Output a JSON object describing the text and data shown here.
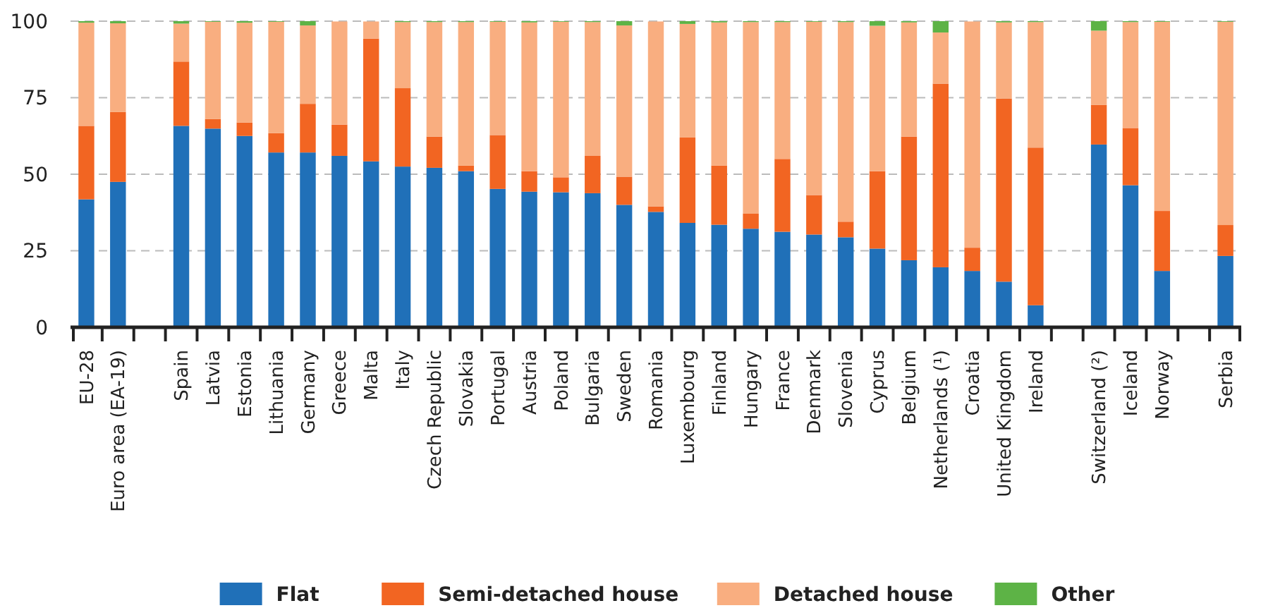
{
  "chart_data": {
    "type": "bar",
    "stacked": true,
    "categories": [
      "EU-28",
      "Euro area (EA-19)",
      null,
      "Spain",
      "Latvia",
      "Estonia",
      "Lithuania",
      "Germany",
      "Greece",
      "Malta",
      "Italy",
      "Czech Republic",
      "Slovakia",
      "Portugal",
      "Austria",
      "Poland",
      "Bulgaria",
      "Sweden",
      "Romania",
      "Luxembourg",
      "Finland",
      "Hungary",
      "France",
      "Denmark",
      "Slovenia",
      "Cyprus",
      "Belgium",
      "Netherlands (¹)",
      "Croatia",
      "United Kingdom",
      "Ireland",
      null,
      "Switzerland (²)",
      "Iceland",
      "Norway",
      null,
      "Serbia"
    ],
    "series": [
      {
        "name": "Flat",
        "color": "#2070b8",
        "values": [
          41.8,
          47.5,
          null,
          65.8,
          64.9,
          62.5,
          57.1,
          57.1,
          56.0,
          54.2,
          52.5,
          52.1,
          51.0,
          45.2,
          44.3,
          44.1,
          43.8,
          40.0,
          37.7,
          34.1,
          33.5,
          32.2,
          31.2,
          30.3,
          29.4,
          25.7,
          21.9,
          19.6,
          18.4,
          14.9,
          7.2,
          null,
          59.7,
          46.4,
          18.4,
          null,
          23.3
        ]
      },
      {
        "name": "Semi-detached house",
        "color": "#f26522",
        "values": [
          24.0,
          22.8,
          null,
          21.0,
          3.1,
          4.4,
          6.3,
          15.9,
          10.2,
          40.1,
          25.6,
          10.2,
          1.8,
          17.6,
          6.7,
          4.9,
          12.2,
          9.2,
          1.8,
          27.9,
          19.3,
          4.9,
          23.8,
          12.9,
          5.1,
          25.3,
          40.4,
          60.0,
          7.6,
          59.8,
          51.5,
          null,
          12.9,
          18.7,
          19.6,
          null,
          10.1
        ]
      },
      {
        "name": "Detached house",
        "color": "#f9ae80",
        "values": [
          33.7,
          29.0,
          null,
          12.4,
          31.8,
          32.6,
          36.4,
          25.6,
          33.7,
          5.6,
          21.6,
          37.4,
          46.9,
          37.0,
          48.6,
          50.8,
          43.7,
          49.4,
          60.4,
          37.1,
          46.8,
          62.6,
          44.7,
          56.6,
          65.2,
          47.5,
          37.3,
          16.7,
          73.9,
          24.9,
          41.0,
          null,
          24.3,
          34.6,
          61.8,
          null,
          66.4
        ]
      },
      {
        "name": "Other",
        "color": "#5db346",
        "values": [
          0.5,
          0.7,
          null,
          0.8,
          0.2,
          0.5,
          0.2,
          1.4,
          null,
          null,
          0.3,
          0.3,
          0.3,
          0.2,
          0.4,
          0.2,
          0.3,
          1.4,
          null,
          0.9,
          0.4,
          0.3,
          0.3,
          0.2,
          0.3,
          1.5,
          0.4,
          3.7,
          null,
          0.4,
          0.3,
          null,
          3.1,
          0.3,
          0.2,
          null,
          0.2
        ]
      }
    ],
    "ylim": [
      0,
      100
    ],
    "yticks": [
      0,
      25,
      50,
      75,
      100
    ],
    "grid": "y",
    "legend": "bottom"
  }
}
